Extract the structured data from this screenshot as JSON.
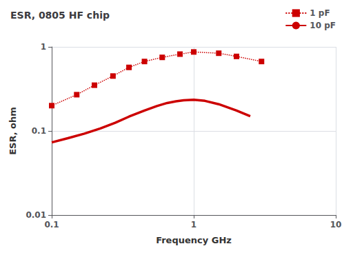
{
  "chart_data": {
    "type": "line",
    "title": "ESR, 0805 HF chip",
    "x_label": "Frequency GHz",
    "y_label": "ESR, ohm",
    "log": true,
    "xlim": [
      0.1,
      10
    ],
    "ylim": [
      0.01,
      1.0
    ],
    "xticks": [
      0.1,
      1,
      10
    ],
    "yticks": [
      0.01,
      0.1,
      1
    ],
    "grid": true,
    "legend": "upper right",
    "series": [
      {
        "name": "1 pF",
        "color": "#cc0000",
        "line_style": "dotted",
        "marker": "square",
        "x": [
          0.1,
          0.15,
          0.2,
          0.27,
          0.35,
          0.45,
          0.6,
          0.8,
          1.0,
          1.5,
          2.0,
          3.0
        ],
        "values": [
          0.2,
          0.27,
          0.35,
          0.45,
          0.57,
          0.67,
          0.75,
          0.82,
          0.87,
          0.84,
          0.77,
          0.67
        ]
      },
      {
        "name": "10 pF",
        "color": "#cc0000",
        "line_style": "solid",
        "marker": "none",
        "x": [
          0.1,
          0.13,
          0.17,
          0.22,
          0.28,
          0.35,
          0.45,
          0.55,
          0.65,
          0.75,
          0.85,
          1.0,
          1.2,
          1.5,
          2.0,
          2.5
        ],
        "values": [
          0.073,
          0.082,
          0.093,
          0.107,
          0.125,
          0.148,
          0.175,
          0.198,
          0.215,
          0.225,
          0.232,
          0.235,
          0.228,
          0.208,
          0.175,
          0.15
        ]
      }
    ]
  }
}
